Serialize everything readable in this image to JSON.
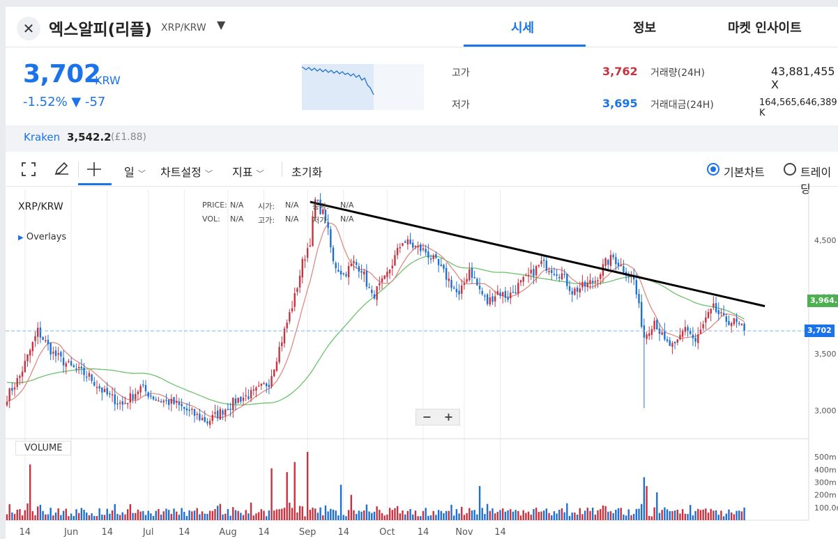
{
  "header": {
    "close_icon": "close-icon",
    "coin_name": "엑스알피(리플)",
    "pair": "XRP/KRW",
    "dropdown_icon": "▼",
    "tabs": [
      {
        "label": "시세",
        "active": true
      },
      {
        "label": "정보",
        "active": false
      },
      {
        "label": "마켓 인사이트",
        "active": false
      }
    ]
  },
  "price": {
    "value": "3,702",
    "unit": "KRW",
    "change": "-1.52% ▼ -57",
    "high_label": "고가",
    "high": "3,762",
    "low_label": "저가",
    "low": "3,695",
    "volume_label": "거래량(24H)",
    "volume": "43,881,455 X",
    "amount_label": "거래대금(24H)",
    "amount": "164,565,646,389 K"
  },
  "exchange": {
    "name": "Kraken",
    "value": "3,542.2",
    "gbp": "(£1.88)"
  },
  "toolbar": {
    "expand_icon": "expand-icon",
    "pencil_icon": "pencil-icon",
    "crosshair_icon": "crosshair-icon",
    "period": "일",
    "chart_settings": "차트설정",
    "indicators": "지표",
    "reset": "초기화",
    "basic_chart": "기본차트",
    "trading_chart": "트레이딩"
  },
  "colors": {
    "up": "#c8313e",
    "down": "#1f6fd0",
    "ma_short": "#e08a80",
    "ma_long": "#6cc26b",
    "accent": "#1a73e8"
  },
  "chart_data": {
    "type": "candlestick",
    "title": "XRP/KRW",
    "overlays_label": "Overlays",
    "legend": {
      "price_label": "PRICE:",
      "price_val": "N/A",
      "open_label": "시가:",
      "open_val": "N/A",
      "close_label": "종가:",
      "close_val": "N/A",
      "vol_label": "VOL:",
      "vol_val": "N/A",
      "high_label": "고가:",
      "high_val": "N/A",
      "low_label": "저가:",
      "low_val": "N/A"
    },
    "x_tick_labels": [
      "14",
      "Jun",
      "14",
      "Jul",
      "14",
      "Aug",
      "14",
      "Sep",
      "14",
      "Oct",
      "14",
      "Nov",
      "14"
    ],
    "y_tick_labels": [
      "4,500",
      "4,000",
      "3,500",
      "3,000"
    ],
    "y_ticks": [
      4500,
      4000,
      3500,
      3000
    ],
    "ylim": [
      2750,
      4950
    ],
    "current_price_tag": "3,702",
    "current_price": 3702,
    "ma_tag": "3,964.1",
    "ma_tag_value": 3964,
    "volume_panel_label": "VOLUME",
    "volume_tick_labels": [
      "500m",
      "400m",
      "300m",
      "200m",
      "100.0m"
    ],
    "volume_ticks": [
      500,
      400,
      300,
      200,
      100
    ],
    "volume_max": 600,
    "trendline": {
      "start_day": 118,
      "start_price": 4840,
      "end_day": 295,
      "end_price": 3920
    },
    "first_date": "May 7",
    "close_anchors": [
      [
        0,
        3120
      ],
      [
        5,
        3300
      ],
      [
        12,
        3700
      ],
      [
        18,
        3500
      ],
      [
        25,
        3380
      ],
      [
        32,
        3300
      ],
      [
        38,
        3150
      ],
      [
        45,
        3050
      ],
      [
        52,
        3200
      ],
      [
        58,
        3100
      ],
      [
        65,
        3060
      ],
      [
        70,
        3000
      ],
      [
        74,
        2950
      ],
      [
        78,
        2900
      ],
      [
        84,
        3000
      ],
      [
        90,
        3100
      ],
      [
        96,
        3150
      ],
      [
        102,
        3250
      ],
      [
        108,
        3700
      ],
      [
        112,
        4000
      ],
      [
        115,
        4300
      ],
      [
        118,
        4500
      ],
      [
        120,
        4850
      ],
      [
        124,
        4700
      ],
      [
        127,
        4300
      ],
      [
        131,
        4200
      ],
      [
        135,
        4300
      ],
      [
        138,
        4250
      ],
      [
        142,
        4000
      ],
      [
        147,
        4150
      ],
      [
        150,
        4300
      ],
      [
        154,
        4500
      ],
      [
        158,
        4450
      ],
      [
        163,
        4400
      ],
      [
        167,
        4300
      ],
      [
        172,
        4150
      ],
      [
        176,
        4000
      ],
      [
        180,
        4250
      ],
      [
        183,
        4100
      ],
      [
        187,
        3950
      ],
      [
        191,
        4050
      ],
      [
        195,
        4000
      ],
      [
        199,
        4100
      ],
      [
        204,
        4200
      ],
      [
        208,
        4300
      ],
      [
        212,
        4250
      ],
      [
        216,
        4200
      ],
      [
        220,
        4050
      ],
      [
        225,
        4100
      ],
      [
        229,
        4150
      ],
      [
        233,
        4300
      ],
      [
        236,
        4350
      ],
      [
        240,
        4250
      ],
      [
        244,
        4150
      ],
      [
        246,
        3900
      ],
      [
        248,
        3650
      ],
      [
        252,
        3800
      ],
      [
        256,
        3600
      ],
      [
        260,
        3550
      ],
      [
        264,
        3750
      ],
      [
        268,
        3600
      ],
      [
        272,
        3800
      ],
      [
        275,
        3900
      ],
      [
        279,
        3800
      ],
      [
        283,
        3780
      ],
      [
        287,
        3702
      ]
    ],
    "volume_spikes": [
      [
        9,
        440
      ],
      [
        103,
        370
      ],
      [
        109,
        380
      ],
      [
        112,
        420
      ],
      [
        117,
        500
      ],
      [
        130,
        280
      ],
      [
        134,
        200
      ],
      [
        184,
        270
      ],
      [
        248,
        300
      ],
      [
        249,
        270
      ],
      [
        253,
        180
      ],
      [
        266,
        120
      ]
    ],
    "ma_short_period": 10,
    "ma_long_period": 50,
    "ma_long_seed": 3250
  }
}
